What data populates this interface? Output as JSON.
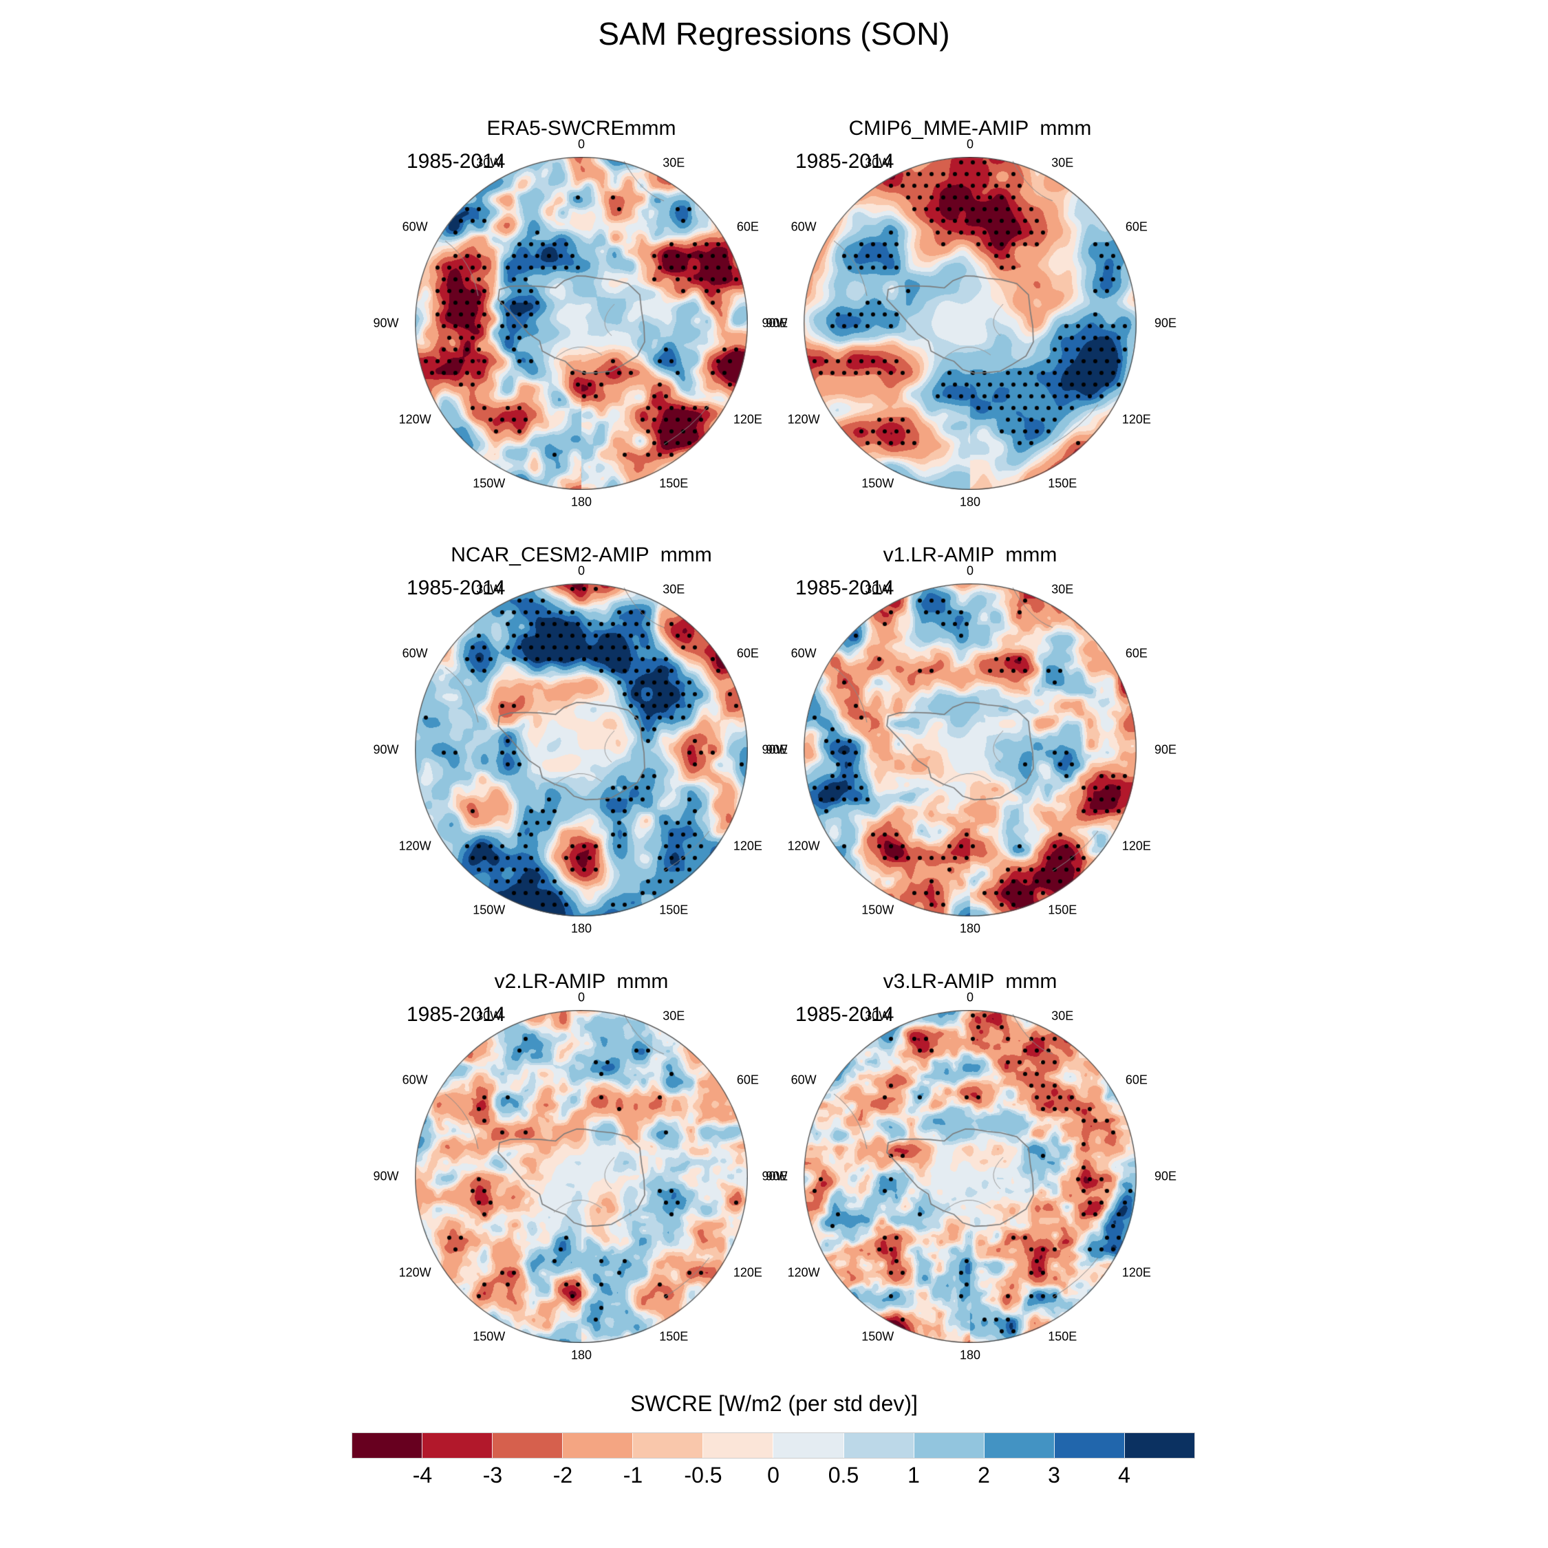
{
  "figure": {
    "title": "SAM Regressions (SON)"
  },
  "panels": [
    {
      "id": "era5",
      "title": "ERA5-SWCREmmm",
      "period": "1985-2014"
    },
    {
      "id": "cmip6",
      "title": "CMIP6_MME-AMIP  mmm",
      "period": "1985-2014"
    },
    {
      "id": "ncar",
      "title": "NCAR_CESM2-AMIP  mmm",
      "period": "1985-2014"
    },
    {
      "id": "v1",
      "title": "v1.LR-AMIP  mmm",
      "period": "1985-2014"
    },
    {
      "id": "v2",
      "title": "v2.LR-AMIP  mmm",
      "period": "1985-2014"
    },
    {
      "id": "v3",
      "title": "v3.LR-AMIP  mmm",
      "period": "1985-2014"
    }
  ],
  "map": {
    "lon_labels": [
      {
        "angle": 0,
        "label": "0"
      },
      {
        "angle": 30,
        "label": "30E"
      },
      {
        "angle": 60,
        "label": "60E"
      },
      {
        "angle": 90,
        "label": "90E"
      },
      {
        "angle": 120,
        "label": "120E"
      },
      {
        "angle": 150,
        "label": "150E"
      },
      {
        "angle": 180,
        "label": "180"
      },
      {
        "angle": 210,
        "label": "150W"
      },
      {
        "angle": 240,
        "label": "120W"
      },
      {
        "angle": 270,
        "label": "90W"
      },
      {
        "angle": 300,
        "label": "60W"
      },
      {
        "angle": 330,
        "label": "30W"
      }
    ]
  },
  "colorbar": {
    "title": "SWCRE [W/m2 (per std dev)]",
    "tick_labels": [
      "-4",
      "-3",
      "-2",
      "-1",
      "-0.5",
      "0",
      "0.5",
      "1",
      "2",
      "3",
      "4"
    ],
    "colors": [
      "#67001f",
      "#b2182b",
      "#d6604d",
      "#f4a582",
      "#f9c7ab",
      "#fbe5d8",
      "#e4ecf2",
      "#bcd8e8",
      "#92c5de",
      "#4393c3",
      "#2166ac",
      "#0b3161"
    ]
  },
  "chart_data": {
    "type": "heatmap",
    "subtype": "south-polar-stereographic filled-contour maps (2 cols x 3 rows)",
    "suptitle": "SAM Regressions (SON)",
    "variable": "SWCRE",
    "units": "W/m2 (per std dev)",
    "season": "SON",
    "period": "1985-2014",
    "panel_titles": [
      "ERA5-SWCREmmm",
      "CMIP6_MME-AMIP  mmm",
      "NCAR_CESM2-AMIP  mmm",
      "v1.LR-AMIP  mmm",
      "v2.LR-AMIP  mmm",
      "v3.LR-AMIP  mmm"
    ],
    "contour_levels": [
      -4,
      -3,
      -2,
      -1,
      -0.5,
      0,
      0.5,
      1,
      2,
      3,
      4
    ],
    "palette": [
      "#67001f",
      "#b2182b",
      "#d6604d",
      "#f4a582",
      "#f9c7ab",
      "#fbe5d8",
      "#e4ecf2",
      "#bcd8e8",
      "#92c5de",
      "#4393c3",
      "#2166ac",
      "#0b3161"
    ],
    "longitude_ticks": [
      "0",
      "30E",
      "60E",
      "90E",
      "120E",
      "150E",
      "180",
      "150W",
      "120W",
      "90W",
      "60W",
      "30W"
    ],
    "overlay": "black stippling dots over strong anomaly regions; gray Antarctica coastline at map center; values near the pole are close to zero (pale)",
    "legend_position": "bottom horizontal colorbar"
  }
}
